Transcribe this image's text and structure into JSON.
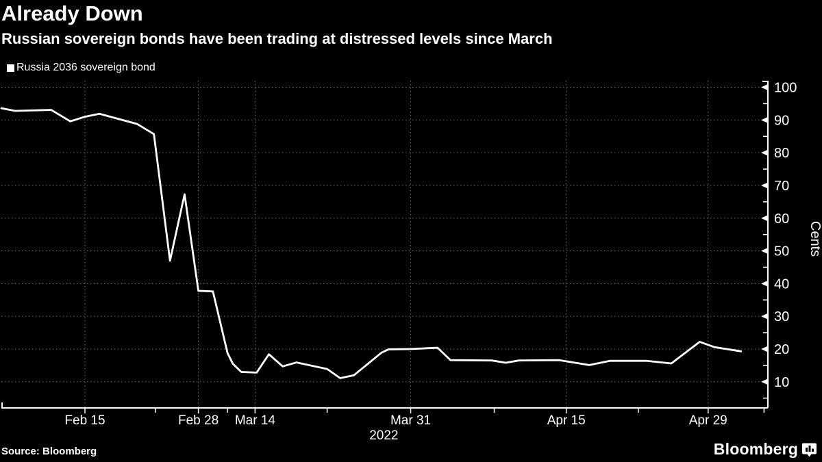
{
  "header": {
    "title": "Already Down",
    "subtitle": "Russian sovereign bonds have been trading at distressed levels since March"
  },
  "legend": {
    "label": "Russia 2036 sovereign bond",
    "marker_color": "#ffffff"
  },
  "footer": {
    "source": "Source: Bloomberg",
    "logo_text": "Bloomberg",
    "logo_icon": "bloomberg-terminal-icon"
  },
  "chart_data": {
    "type": "line",
    "title": "Already Down",
    "subtitle": "Russian sovereign bonds have been trading at distressed levels since March",
    "ylabel": "Cents",
    "ylim": [
      2,
      102
    ],
    "yticks": [
      10,
      20,
      30,
      40,
      50,
      60,
      70,
      80,
      90,
      100
    ],
    "y_minor_ticks": [
      5,
      15,
      25,
      35,
      45,
      55,
      65,
      75,
      85,
      95
    ],
    "grid": "dotted",
    "grid_color": "#6f6f6f",
    "axis_color": "#ffffff",
    "line_color": "#ffffff",
    "background": "#000000",
    "legend_position": "top-left",
    "xticks": [
      {
        "label": "Feb 15",
        "pos": 0.109
      },
      {
        "label": "Feb 28",
        "pos": 0.257
      },
      {
        "label": "Mar 14",
        "pos": 0.331
      },
      {
        "label": "Mar 31",
        "pos": 0.534
      },
      {
        "label": "Apr 15",
        "pos": 0.737
      },
      {
        "label": "Apr 29",
        "pos": 0.922
      }
    ],
    "x_minor_tick_pos": [
      0.201,
      0.295,
      0.425,
      0.643,
      0.831,
      0.995
    ],
    "x_year_label": {
      "label": "2022",
      "pos": 0.499
    },
    "series": [
      {
        "name": "Russia 2036 sovereign bond",
        "color": "#ffffff",
        "points": [
          {
            "date": "Feb 5",
            "pos": 0.0,
            "value": 93.6
          },
          {
            "date": "Feb 7",
            "pos": 0.018,
            "value": 92.8
          },
          {
            "date": "Feb 11",
            "pos": 0.065,
            "value": 93.1
          },
          {
            "date": "Feb 14",
            "pos": 0.09,
            "value": 89.6
          },
          {
            "date": "Feb 15",
            "pos": 0.109,
            "value": 91.0
          },
          {
            "date": "Feb 17",
            "pos": 0.128,
            "value": 91.9
          },
          {
            "date": "Feb 21",
            "pos": 0.177,
            "value": 88.8
          },
          {
            "date": "Feb 23",
            "pos": 0.199,
            "value": 85.7
          },
          {
            "date": "Feb 25",
            "pos": 0.22,
            "value": 47.0
          },
          {
            "date": "Feb 26",
            "pos": 0.239,
            "value": 67.3
          },
          {
            "date": "Feb 28",
            "pos": 0.257,
            "value": 37.8
          },
          {
            "date": "Mar 4",
            "pos": 0.276,
            "value": 37.6
          },
          {
            "date": "Mar 7",
            "pos": 0.295,
            "value": 18.8
          },
          {
            "date": "Mar 9",
            "pos": 0.302,
            "value": 15.5
          },
          {
            "date": "Mar 11",
            "pos": 0.313,
            "value": 13.0
          },
          {
            "date": "Mar 14",
            "pos": 0.333,
            "value": 12.8
          },
          {
            "date": "Mar 16",
            "pos": 0.349,
            "value": 18.4
          },
          {
            "date": "Mar 17",
            "pos": 0.367,
            "value": 14.7
          },
          {
            "date": "Mar 18",
            "pos": 0.385,
            "value": 15.9
          },
          {
            "date": "Mar 22",
            "pos": 0.425,
            "value": 13.9
          },
          {
            "date": "Mar 23",
            "pos": 0.442,
            "value": 11.1
          },
          {
            "date": "Mar 25",
            "pos": 0.46,
            "value": 12.0
          },
          {
            "date": "Mar 28",
            "pos": 0.496,
            "value": 18.9
          },
          {
            "date": "Mar 29",
            "pos": 0.505,
            "value": 19.9
          },
          {
            "date": "Mar 31",
            "pos": 0.534,
            "value": 20.0
          },
          {
            "date": "Apr 3",
            "pos": 0.569,
            "value": 20.4
          },
          {
            "date": "Apr 4",
            "pos": 0.586,
            "value": 16.6
          },
          {
            "date": "Apr 8",
            "pos": 0.64,
            "value": 16.5
          },
          {
            "date": "Apr 9",
            "pos": 0.658,
            "value": 15.8
          },
          {
            "date": "Apr 10",
            "pos": 0.675,
            "value": 16.5
          },
          {
            "date": "Apr 14",
            "pos": 0.728,
            "value": 16.6
          },
          {
            "date": "Apr 17",
            "pos": 0.767,
            "value": 15.1
          },
          {
            "date": "Apr 19",
            "pos": 0.794,
            "value": 16.4
          },
          {
            "date": "Apr 23",
            "pos": 0.841,
            "value": 16.4
          },
          {
            "date": "Apr 25",
            "pos": 0.874,
            "value": 15.6
          },
          {
            "date": "Apr 28",
            "pos": 0.911,
            "value": 22.2
          },
          {
            "date": "Apr 30",
            "pos": 0.93,
            "value": 20.6
          },
          {
            "date": "May 2",
            "pos": 0.965,
            "value": 19.3
          }
        ]
      }
    ]
  }
}
